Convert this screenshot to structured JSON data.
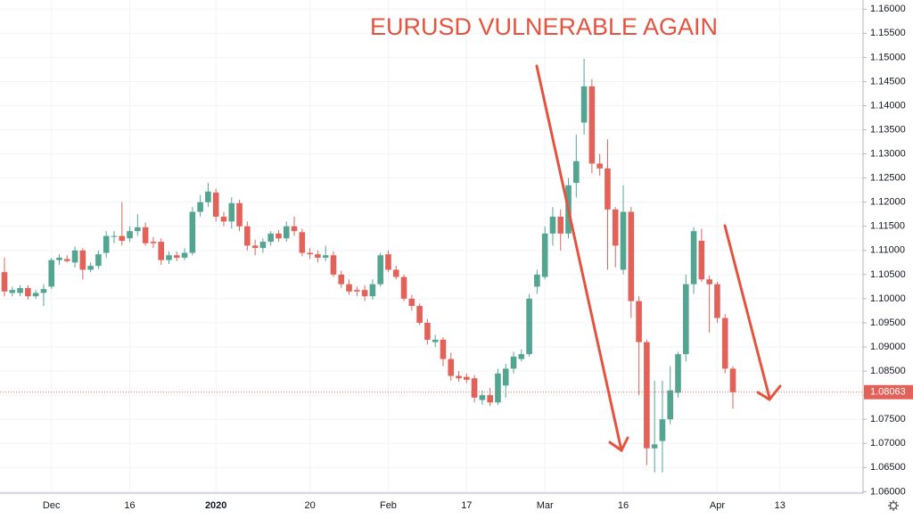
{
  "chart_data": {
    "type": "candlestick",
    "title": "EURUSD VULNERABLE AGAIN",
    "categories": [
      null,
      null,
      null,
      null,
      null,
      null,
      "Dec",
      null,
      null,
      null,
      null,
      null,
      null,
      null,
      null,
      null,
      "16",
      null,
      null,
      null,
      null,
      null,
      null,
      null,
      null,
      null,
      null,
      "2020",
      null,
      null,
      null,
      null,
      null,
      null,
      null,
      null,
      null,
      null,
      null,
      "20",
      null,
      null,
      null,
      null,
      null,
      null,
      null,
      null,
      null,
      "Feb",
      null,
      null,
      null,
      null,
      null,
      null,
      null,
      null,
      null,
      "17",
      null,
      null,
      null,
      null,
      null,
      null,
      null,
      null,
      null,
      "Mar",
      null,
      null,
      null,
      null,
      null,
      null,
      null,
      null,
      null,
      "16",
      null,
      null,
      null,
      null,
      null,
      null,
      null,
      null,
      null,
      null,
      null,
      "Apr",
      null,
      null,
      null,
      null,
      null,
      null,
      null,
      "13"
    ],
    "open": [
      1.1055,
      1.1012,
      1.1012,
      1.1022,
      1.1005,
      1.1012,
      1.1025,
      1.108,
      1.1082,
      1.1075,
      1.11,
      1.106,
      1.1068,
      1.1095,
      1.1128,
      1.113,
      1.1125,
      1.114,
      1.1148,
      1.1118,
      1.1118,
      1.108,
      1.109,
      1.1085,
      1.1095,
      1.118,
      1.12,
      1.122,
      1.117,
      1.116,
      1.1198,
      1.115,
      1.111,
      1.1105,
      1.1118,
      1.1135,
      1.1125,
      1.115,
      1.1138,
      1.1095,
      1.1092,
      1.1085,
      1.109,
      1.105,
      1.103,
      1.1018,
      1.1018,
      1.1005,
      1.103,
      1.1092,
      1.106,
      1.1045,
      1.1,
      1.0985,
      1.095,
      1.091,
      1.0915,
      1.0875,
      1.084,
      1.0838,
      1.0835,
      1.079,
      1.08,
      1.0785,
      1.082,
      1.0855,
      1.0875,
      1.0885,
      1.1025,
      1.1045,
      1.1135,
      1.117,
      1.1135,
      1.124,
      1.1365,
      1.144,
      1.128,
      1.127,
      1.1185,
      1.106,
      1.118,
      1.0995,
      1.091,
      1.069,
      1.0705,
      1.075,
      1.0805,
      1.0885,
      1.103,
      1.112,
      1.104,
      1.103,
      1.096,
      1.0855,
      null,
      null,
      null,
      null,
      null,
      null
    ],
    "high": [
      1.1085,
      1.1025,
      1.1028,
      1.1028,
      1.1018,
      1.103,
      1.1085,
      1.1092,
      1.109,
      1.1108,
      1.1105,
      1.1075,
      1.11,
      1.114,
      1.114,
      1.12,
      1.115,
      1.1175,
      1.1158,
      1.1128,
      1.1125,
      1.1098,
      1.1098,
      1.1105,
      1.119,
      1.1215,
      1.124,
      1.1228,
      1.118,
      1.121,
      1.1205,
      1.116,
      1.1122,
      1.1125,
      1.114,
      1.1142,
      1.116,
      1.117,
      1.1145,
      1.1105,
      1.11,
      1.111,
      1.1098,
      1.1058,
      1.104,
      1.1025,
      1.1028,
      1.104,
      1.1095,
      1.11,
      1.1068,
      1.105,
      1.1008,
      1.099,
      1.0958,
      1.0925,
      1.092,
      1.0888,
      1.085,
      1.0845,
      1.0842,
      1.081,
      1.0815,
      1.0855,
      1.0865,
      1.089,
      1.0895,
      1.101,
      1.106,
      1.115,
      1.119,
      1.1185,
      1.125,
      1.134,
      1.1497,
      1.1455,
      1.13,
      1.133,
      1.119,
      1.1235,
      1.119,
      1.1005,
      1.0915,
      1.083,
      1.083,
      1.086,
      1.089,
      1.105,
      1.1148,
      1.1145,
      1.1048,
      1.1035,
      1.0968,
      1.086,
      null,
      null,
      null,
      null,
      null,
      null
    ],
    "low": [
      1.1005,
      1.1005,
      1.1005,
      1.0998,
      1.1,
      1.0985,
      1.102,
      1.107,
      1.1075,
      1.1065,
      1.104,
      1.1055,
      1.1062,
      1.1085,
      1.1115,
      1.111,
      1.1118,
      1.113,
      1.111,
      1.1105,
      1.107,
      1.1072,
      1.1078,
      1.108,
      1.109,
      1.117,
      1.119,
      1.116,
      1.115,
      1.1145,
      1.114,
      1.11,
      1.109,
      1.1095,
      1.111,
      1.1118,
      1.1118,
      1.113,
      1.1088,
      1.1082,
      1.1075,
      1.1078,
      1.1045,
      1.1022,
      1.1008,
      1.1005,
      1.0995,
      1.0998,
      1.1025,
      1.1055,
      1.104,
      1.0995,
      1.0975,
      1.0945,
      1.0905,
      1.09,
      1.086,
      1.083,
      1.0828,
      1.0825,
      1.0785,
      1.078,
      1.0778,
      1.078,
      1.0795,
      1.0845,
      1.087,
      1.088,
      1.101,
      1.104,
      1.111,
      1.11,
      1.1125,
      1.121,
      1.134,
      1.126,
      1.1255,
      1.106,
      1.1065,
      1.105,
      1.096,
      1.08,
      1.0655,
      1.064,
      1.064,
      1.074,
      1.0795,
      1.087,
      1.101,
      1.1035,
      1.093,
      1.095,
      1.0845,
      1.0772,
      null,
      null,
      null,
      null,
      null,
      null
    ],
    "close": [
      1.1015,
      1.1018,
      1.1022,
      1.1005,
      1.1012,
      1.102,
      1.108,
      1.1085,
      1.1078,
      1.11,
      1.106,
      1.1068,
      1.1092,
      1.113,
      1.113,
      1.112,
      1.114,
      1.1148,
      1.1115,
      1.1115,
      1.108,
      1.109,
      1.1085,
      1.1095,
      1.118,
      1.12,
      1.1222,
      1.117,
      1.116,
      1.1198,
      1.115,
      1.111,
      1.1105,
      1.1118,
      1.1135,
      1.1125,
      1.115,
      1.114,
      1.1095,
      1.1092,
      1.1085,
      1.109,
      1.105,
      1.103,
      1.1015,
      1.1015,
      1.1005,
      1.103,
      1.109,
      1.106,
      1.1045,
      1.1,
      1.0985,
      1.095,
      1.0915,
      1.0915,
      1.0875,
      1.084,
      1.0835,
      1.0832,
      1.0795,
      1.08,
      1.0785,
      1.0845,
      1.0855,
      1.088,
      1.0885,
      1.1,
      1.105,
      1.1135,
      1.117,
      1.1135,
      1.1235,
      1.1285,
      1.144,
      1.128,
      1.127,
      1.1185,
      1.111,
      1.118,
      1.0995,
      1.091,
      1.069,
      1.0698,
      1.075,
      1.081,
      1.0885,
      1.103,
      1.114,
      1.104,
      1.103,
      1.096,
      1.0855,
      1.08063,
      null,
      null,
      null,
      null,
      null,
      null
    ],
    "up_color": "#53a592",
    "down_color": "#e2625a",
    "ylim": [
      1.0597,
      1.1619
    ],
    "yticks": [
      {
        "value": 1.06,
        "label": "1.06000"
      },
      {
        "value": 1.065,
        "label": "1.06500"
      },
      {
        "value": 1.07,
        "label": "1.07000"
      },
      {
        "value": 1.075,
        "label": "1.07500"
      },
      {
        "value": 1.08,
        "label": "1.08000"
      },
      {
        "value": 1.085,
        "label": "1.08500"
      },
      {
        "value": 1.09,
        "label": "1.09000"
      },
      {
        "value": 1.095,
        "label": "1.09500"
      },
      {
        "value": 1.1,
        "label": "1.10000"
      },
      {
        "value": 1.105,
        "label": "1.10500"
      },
      {
        "value": 1.11,
        "label": "1.11000"
      },
      {
        "value": 1.115,
        "label": "1.11500"
      },
      {
        "value": 1.12,
        "label": "1.12000"
      },
      {
        "value": 1.125,
        "label": "1.12500"
      },
      {
        "value": 1.13,
        "label": "1.13000"
      },
      {
        "value": 1.135,
        "label": "1.13500"
      },
      {
        "value": 1.14,
        "label": "1.14000"
      },
      {
        "value": 1.145,
        "label": "1.14500"
      },
      {
        "value": 1.15,
        "label": "1.15000"
      },
      {
        "value": 1.155,
        "label": "1.15500"
      },
      {
        "value": 1.16,
        "label": "1.16000"
      }
    ],
    "current_price": 1.08063,
    "grid": true
  }
}
